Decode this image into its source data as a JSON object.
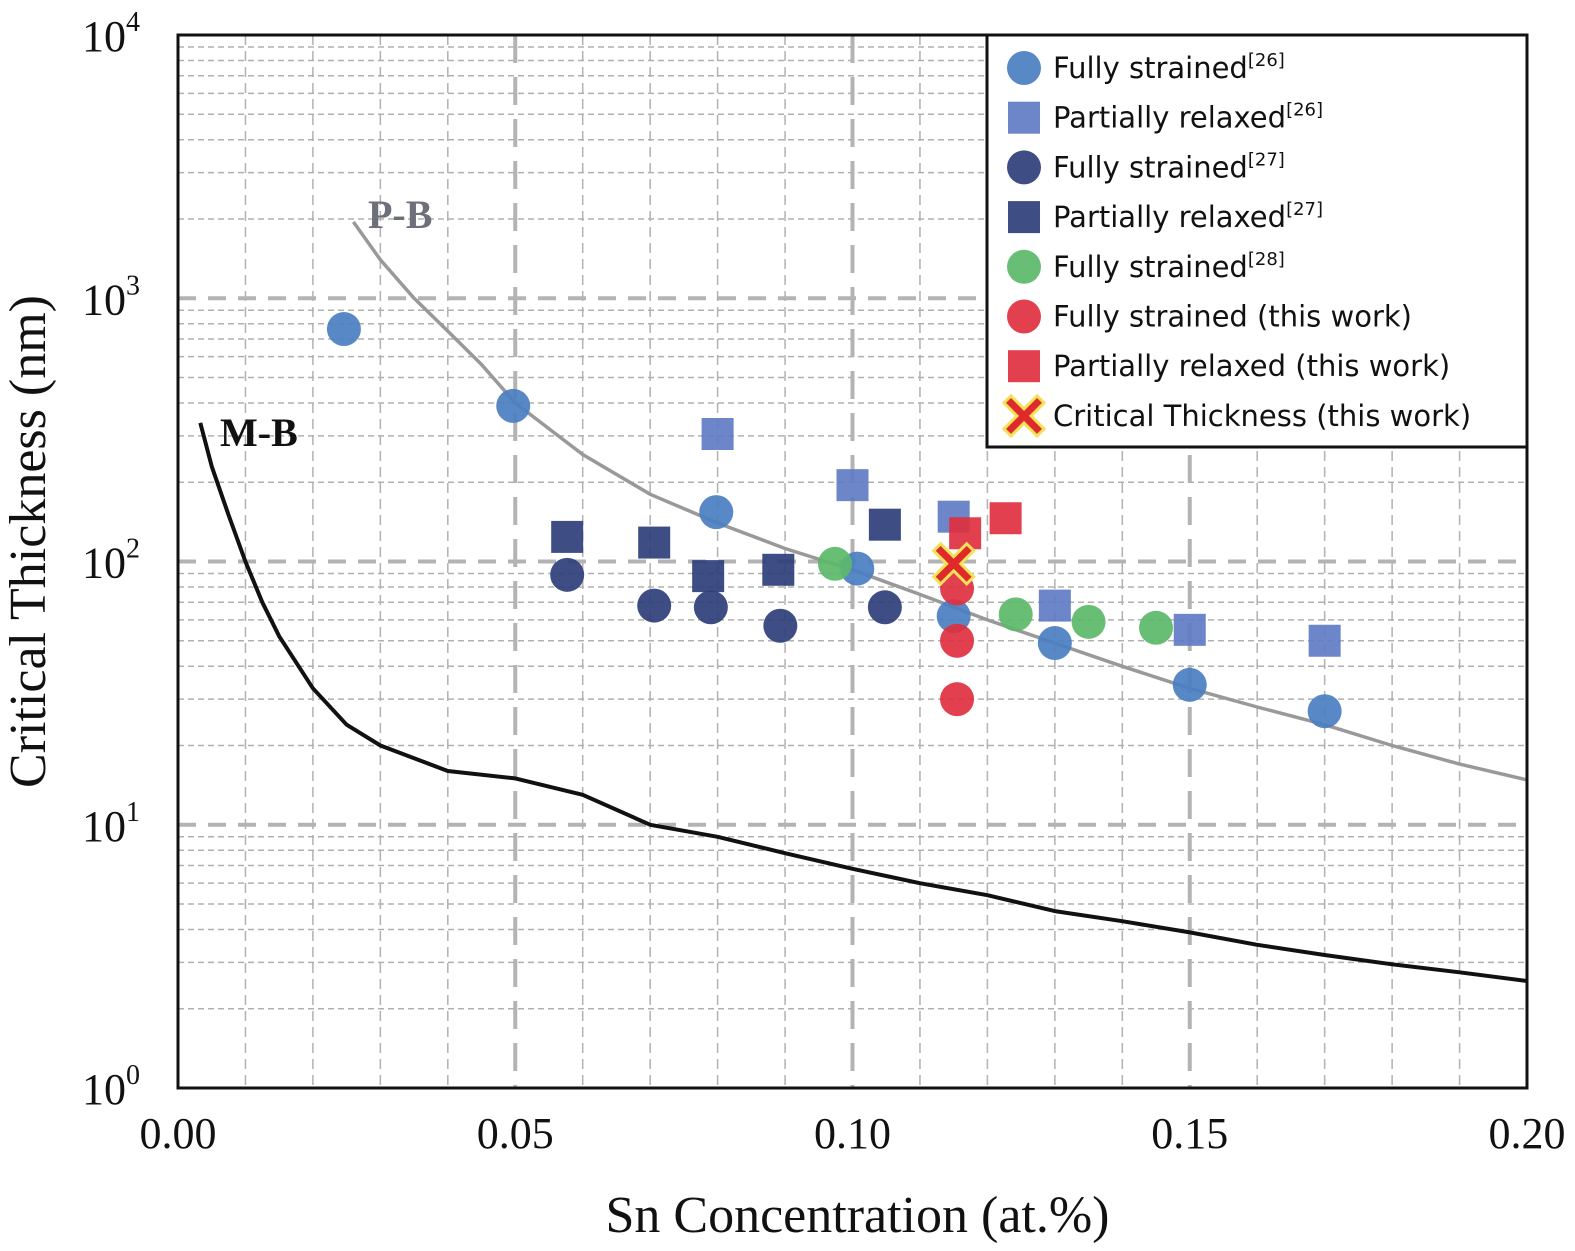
{
  "chart_data": {
    "type": "scatter",
    "title": "",
    "xlabel": "Sn Concentration (at.%)",
    "ylabel": "Critical Thickness (nm)",
    "xlim": [
      0.0,
      0.2
    ],
    "ylim": [
      1,
      10000
    ],
    "yscale": "log",
    "grid": true,
    "legend_position": "top-right",
    "x_ticks": [
      "0.00",
      "0.05",
      "0.10",
      "0.15",
      "0.20"
    ],
    "x_tick_values": [
      0.0,
      0.05,
      0.1,
      0.15,
      0.2
    ],
    "y_ticks": [
      {
        "base": "10",
        "exp": "0",
        "value": 1
      },
      {
        "base": "10",
        "exp": "1",
        "value": 10
      },
      {
        "base": "10",
        "exp": "2",
        "value": 100
      },
      {
        "base": "10",
        "exp": "3",
        "value": 1000
      },
      {
        "base": "10",
        "exp": "4",
        "value": 10000
      }
    ],
    "curves": [
      {
        "name": "P-B",
        "label": "P-B",
        "color": "#999999",
        "label_color": "#6d7078",
        "points": [
          [
            0.026,
            1950
          ],
          [
            0.03,
            1400
          ],
          [
            0.035,
            1000
          ],
          [
            0.04,
            750
          ],
          [
            0.045,
            560
          ],
          [
            0.05,
            400
          ],
          [
            0.06,
            255
          ],
          [
            0.07,
            180
          ],
          [
            0.08,
            140
          ],
          [
            0.09,
            112
          ],
          [
            0.1,
            93
          ],
          [
            0.11,
            75
          ],
          [
            0.12,
            60
          ],
          [
            0.13,
            49
          ],
          [
            0.14,
            40
          ],
          [
            0.15,
            33
          ],
          [
            0.16,
            28
          ],
          [
            0.17,
            24
          ],
          [
            0.18,
            20
          ],
          [
            0.19,
            17
          ],
          [
            0.2,
            14.8
          ]
        ]
      },
      {
        "name": "M-B",
        "label": "M-B",
        "color": "#111111",
        "label_color": "#111111",
        "points": [
          [
            0.0033,
            336
          ],
          [
            0.005,
            230
          ],
          [
            0.0075,
            150
          ],
          [
            0.01,
            100
          ],
          [
            0.0125,
            70
          ],
          [
            0.015,
            52
          ],
          [
            0.02,
            33
          ],
          [
            0.025,
            24
          ],
          [
            0.03,
            20
          ],
          [
            0.04,
            16
          ],
          [
            0.05,
            15
          ],
          [
            0.06,
            13
          ],
          [
            0.07,
            10
          ],
          [
            0.08,
            9
          ],
          [
            0.09,
            7.8
          ],
          [
            0.1,
            6.8
          ],
          [
            0.11,
            6
          ],
          [
            0.12,
            5.4
          ],
          [
            0.13,
            4.7
          ],
          [
            0.14,
            4.3
          ],
          [
            0.15,
            3.9
          ],
          [
            0.16,
            3.5
          ],
          [
            0.17,
            3.2
          ],
          [
            0.18,
            2.95
          ],
          [
            0.19,
            2.75
          ],
          [
            0.2,
            2.55
          ]
        ]
      }
    ],
    "series": [
      {
        "name": "Fully strained[26]",
        "label": "Fully strained",
        "ref": "[26]",
        "marker": "circle",
        "color": "#4a7fc1",
        "points": [
          [
            0.0246,
            764
          ],
          [
            0.0497,
            390
          ],
          [
            0.0798,
            154
          ],
          [
            0.1007,
            94
          ],
          [
            0.115,
            62
          ],
          [
            0.13,
            49
          ],
          [
            0.15,
            34
          ],
          [
            0.17,
            27
          ]
        ]
      },
      {
        "name": "Partially relaxed[26]",
        "label": "Partially relaxed",
        "ref": "[26]",
        "marker": "square",
        "color": "#5f7cc4",
        "points": [
          [
            0.08,
            305
          ],
          [
            0.1,
            195
          ],
          [
            0.115,
            148
          ],
          [
            0.13,
            68
          ],
          [
            0.15,
            55
          ],
          [
            0.17,
            50
          ]
        ]
      },
      {
        "name": "Fully strained[27]",
        "label": "Fully strained",
        "ref": "[27]",
        "marker": "circle",
        "color": "#2e3f7a",
        "points": [
          [
            0.0577,
            89
          ],
          [
            0.0706,
            68
          ],
          [
            0.079,
            67
          ],
          [
            0.0893,
            57
          ],
          [
            0.1048,
            67
          ]
        ]
      },
      {
        "name": "Partially relaxed[27]",
        "label": "Partially relaxed",
        "ref": "[27]",
        "marker": "square",
        "color": "#2e3f7a",
        "points": [
          [
            0.0577,
            124
          ],
          [
            0.0706,
            118
          ],
          [
            0.0786,
            88
          ],
          [
            0.089,
            93
          ],
          [
            0.1048,
            138
          ]
        ]
      },
      {
        "name": "Fully strained[28]",
        "label": "Fully strained",
        "ref": "[28]",
        "marker": "circle",
        "color": "#5cb86a",
        "points": [
          [
            0.0974,
            98
          ],
          [
            0.1242,
            63
          ],
          [
            0.135,
            59
          ],
          [
            0.145,
            56
          ]
        ]
      },
      {
        "name": "Fully strained (this work)",
        "label": "Fully strained (this work)",
        "ref": "",
        "marker": "circle",
        "color": "#e0303f",
        "points": [
          [
            0.1155,
            79
          ],
          [
            0.1155,
            50
          ],
          [
            0.1155,
            30
          ]
        ]
      },
      {
        "name": "Partially relaxed (this work)",
        "label": "Partially relaxed (this work)",
        "ref": "",
        "marker": "square",
        "color": "#e0303f",
        "points": [
          [
            0.1167,
            128
          ],
          [
            0.1227,
            146
          ]
        ]
      },
      {
        "name": "Critical Thickness (this work)",
        "label": "Critical Thickness (this work)",
        "ref": "",
        "marker": "x",
        "color": "#e02a2a",
        "outline": "#f2e25a",
        "points": [
          [
            0.115,
            98
          ]
        ]
      }
    ]
  }
}
